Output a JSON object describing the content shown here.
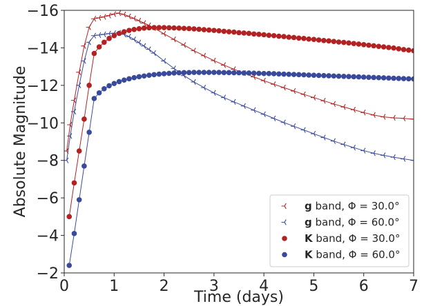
{
  "chart_data": {
    "type": "line",
    "title": "",
    "xlabel": "Time (days)",
    "ylabel": "Absolute Magnitude",
    "xlim": [
      0,
      7
    ],
    "ylim": [
      -2,
      -16
    ],
    "y_inverted": true,
    "x_ticks": [
      0,
      1,
      2,
      3,
      4,
      5,
      6,
      7
    ],
    "x_tick_labels": [
      "0",
      "1",
      "2",
      "3",
      "4",
      "5",
      "6",
      "7"
    ],
    "y_ticks": [
      -2,
      -4,
      -6,
      -8,
      -10,
      -12,
      -14,
      -16
    ],
    "y_tick_labels": [
      "−2",
      "−4",
      "−6",
      "−8",
      "−10",
      "−12",
      "−14",
      "−16"
    ],
    "grid": false,
    "legend_placement": "bottom-right",
    "legend": [
      {
        "bold": "g",
        "text": " band, Φ = 30.0°",
        "series": 0
      },
      {
        "bold": "g",
        "text": " band, Φ = 60.0°",
        "series": 1
      },
      {
        "bold": "K",
        "text": " band, Φ = 30.0°",
        "series": 2
      },
      {
        "bold": "K",
        "text": " band, Φ = 60.0°",
        "series": 3
      }
    ],
    "series": [
      {
        "name": "g band, Φ = 30.0°",
        "color": "#b22222",
        "marker": "tri-left",
        "x": [
          0.05,
          0.12,
          0.2,
          0.3,
          0.4,
          0.5,
          0.6,
          0.7,
          0.8,
          0.9,
          1.0,
          1.1,
          1.2,
          1.3,
          1.4,
          1.5,
          1.6,
          1.7,
          1.8,
          2.0,
          2.2,
          2.4,
          2.6,
          2.8,
          3.0,
          3.2,
          3.4,
          3.6,
          3.8,
          4.0,
          4.2,
          4.4,
          4.6,
          4.8,
          5.0,
          5.2,
          5.4,
          5.6,
          5.8,
          6.0,
          6.2,
          6.4,
          6.6,
          6.8,
          7.0
        ],
        "y": [
          -8.5,
          -9.9,
          -11.2,
          -12.7,
          -14.1,
          -15.1,
          -15.55,
          -15.6,
          -15.65,
          -15.72,
          -15.8,
          -15.85,
          -15.78,
          -15.68,
          -15.57,
          -15.45,
          -15.32,
          -15.2,
          -15.05,
          -14.75,
          -14.45,
          -14.15,
          -13.85,
          -13.58,
          -13.32,
          -13.08,
          -12.86,
          -12.65,
          -12.45,
          -12.25,
          -12.06,
          -11.88,
          -11.7,
          -11.52,
          -11.35,
          -11.18,
          -11.01,
          -10.85,
          -10.7,
          -10.55,
          -10.42,
          -10.32,
          -10.27,
          -10.24,
          -10.2
        ]
      },
      {
        "name": "g band, Φ = 60.0°",
        "color": "#3a4a9b",
        "marker": "tri-left",
        "x": [
          0.05,
          0.12,
          0.2,
          0.3,
          0.4,
          0.5,
          0.6,
          0.7,
          0.8,
          0.9,
          1.0,
          1.1,
          1.2,
          1.3,
          1.4,
          1.5,
          1.6,
          1.7,
          1.8,
          2.0,
          2.2,
          2.4,
          2.6,
          2.8,
          3.0,
          3.2,
          3.4,
          3.6,
          3.8,
          4.0,
          4.2,
          4.4,
          4.6,
          4.8,
          5.0,
          5.2,
          5.4,
          5.6,
          5.8,
          6.0,
          6.2,
          6.4,
          6.6,
          6.8,
          7.0
        ],
        "y": [
          -8.0,
          -9.3,
          -10.6,
          -12.0,
          -13.3,
          -14.3,
          -14.65,
          -14.68,
          -14.72,
          -14.76,
          -14.78,
          -14.8,
          -14.72,
          -14.6,
          -14.45,
          -14.28,
          -14.1,
          -13.92,
          -13.72,
          -13.3,
          -12.9,
          -12.52,
          -12.18,
          -11.88,
          -11.6,
          -11.35,
          -11.12,
          -10.9,
          -10.68,
          -10.46,
          -10.24,
          -10.02,
          -9.82,
          -9.62,
          -9.42,
          -9.22,
          -9.03,
          -8.85,
          -8.68,
          -8.52,
          -8.38,
          -8.27,
          -8.17,
          -8.08,
          -8.0
        ]
      },
      {
        "name": "K band, Φ = 30.0°",
        "color": "#b22222",
        "marker": "circle",
        "x": [
          0.1,
          0.2,
          0.3,
          0.4,
          0.5,
          0.6,
          0.7,
          0.8,
          0.9,
          1.0,
          1.1,
          1.2,
          1.3,
          1.4,
          1.5,
          1.6,
          1.7,
          1.8,
          1.9,
          2.0,
          2.1,
          2.2,
          2.3,
          2.4,
          2.5,
          2.6,
          2.7,
          2.8,
          2.9,
          3.0,
          3.1,
          3.2,
          3.3,
          3.4,
          3.5,
          3.6,
          3.7,
          3.8,
          3.9,
          4.0,
          4.1,
          4.2,
          4.3,
          4.4,
          4.5,
          4.6,
          4.7,
          4.8,
          4.9,
          5.0,
          5.1,
          5.2,
          5.3,
          5.4,
          5.5,
          5.6,
          5.7,
          5.8,
          5.9,
          6.0,
          6.1,
          6.2,
          6.3,
          6.4,
          6.5,
          6.6,
          6.7,
          6.8,
          6.9,
          7.0
        ],
        "y": [
          -5.0,
          -6.8,
          -8.5,
          -10.2,
          -12.0,
          -13.7,
          -14.05,
          -14.3,
          -14.5,
          -14.65,
          -14.77,
          -14.86,
          -14.93,
          -14.98,
          -15.02,
          -15.05,
          -15.07,
          -15.08,
          -15.08,
          -15.08,
          -15.07,
          -15.06,
          -15.05,
          -15.04,
          -15.03,
          -15.01,
          -14.99,
          -14.97,
          -14.95,
          -14.93,
          -14.91,
          -14.88,
          -14.86,
          -14.84,
          -14.81,
          -14.79,
          -14.77,
          -14.74,
          -14.72,
          -14.7,
          -14.67,
          -14.65,
          -14.62,
          -14.6,
          -14.57,
          -14.55,
          -14.52,
          -14.5,
          -14.47,
          -14.45,
          -14.42,
          -14.39,
          -14.37,
          -14.34,
          -14.31,
          -14.29,
          -14.26,
          -14.23,
          -14.2,
          -14.17,
          -14.14,
          -14.11,
          -14.08,
          -14.05,
          -14.02,
          -13.99,
          -13.95,
          -13.91,
          -13.88,
          -13.85
        ]
      },
      {
        "name": "K band, Φ = 60.0°",
        "color": "#3a4a9b",
        "marker": "circle",
        "x": [
          0.1,
          0.2,
          0.3,
          0.4,
          0.5,
          0.6,
          0.7,
          0.8,
          0.9,
          1.0,
          1.1,
          1.2,
          1.3,
          1.4,
          1.5,
          1.6,
          1.7,
          1.8,
          1.9,
          2.0,
          2.1,
          2.2,
          2.3,
          2.4,
          2.5,
          2.6,
          2.7,
          2.8,
          2.9,
          3.0,
          3.1,
          3.2,
          3.3,
          3.4,
          3.5,
          3.6,
          3.7,
          3.8,
          3.9,
          4.0,
          4.1,
          4.2,
          4.3,
          4.4,
          4.5,
          4.6,
          4.7,
          4.8,
          4.9,
          5.0,
          5.1,
          5.2,
          5.3,
          5.4,
          5.5,
          5.6,
          5.7,
          5.8,
          5.9,
          6.0,
          6.1,
          6.2,
          6.3,
          6.4,
          6.5,
          6.6,
          6.7,
          6.8,
          6.9,
          7.0
        ],
        "y": [
          -2.4,
          -4.1,
          -5.9,
          -7.7,
          -9.5,
          -11.3,
          -11.6,
          -11.82,
          -11.98,
          -12.1,
          -12.2,
          -12.28,
          -12.35,
          -12.41,
          -12.46,
          -12.5,
          -12.54,
          -12.57,
          -12.6,
          -12.62,
          -12.64,
          -12.66,
          -12.67,
          -12.68,
          -12.68,
          -12.69,
          -12.69,
          -12.69,
          -12.69,
          -12.69,
          -12.69,
          -12.68,
          -12.68,
          -12.67,
          -12.67,
          -12.66,
          -12.66,
          -12.65,
          -12.64,
          -12.63,
          -12.63,
          -12.62,
          -12.61,
          -12.6,
          -12.59,
          -12.58,
          -12.57,
          -12.56,
          -12.55,
          -12.54,
          -12.53,
          -12.52,
          -12.51,
          -12.5,
          -12.49,
          -12.48,
          -12.47,
          -12.46,
          -12.45,
          -12.44,
          -12.43,
          -12.42,
          -12.41,
          -12.4,
          -12.39,
          -12.38,
          -12.37,
          -12.36,
          -12.35,
          -12.34
        ]
      }
    ]
  }
}
